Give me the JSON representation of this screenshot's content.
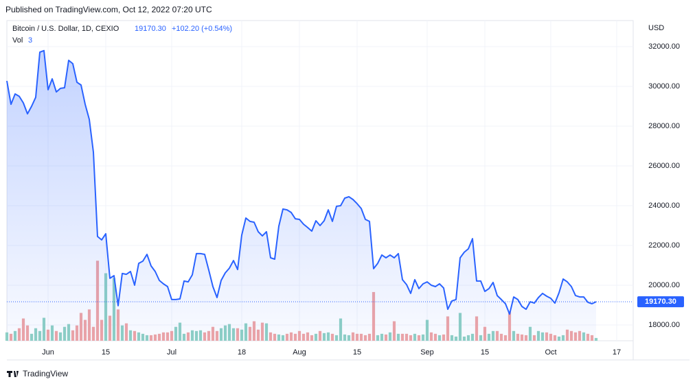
{
  "published": "Published on TradingView.com, Oct 12, 2022 07:20 UTC",
  "footer": "TradingView",
  "chart_data": {
    "type": "area",
    "title": "Bitcoin / U.S. Dollar, 1D, CEXIO",
    "last_price": "19170.30",
    "change": "+102.20 (+0.54%)",
    "volume_label": "Vol",
    "volume_setting": "3",
    "currency": "USD",
    "color": "#2962ff",
    "up_color": "#8fd1c4",
    "down_color": "#f0a5a5",
    "grid": true,
    "xlim": [
      0,
      152
    ],
    "xticks": [
      {
        "value": 10,
        "label": "Jun"
      },
      {
        "value": 24,
        "label": "15"
      },
      {
        "value": 40,
        "label": "Jul"
      },
      {
        "value": 57,
        "label": "18"
      },
      {
        "value": 71,
        "label": "Aug"
      },
      {
        "value": 85,
        "label": "15"
      },
      {
        "value": 102,
        "label": "Sep"
      },
      {
        "value": 116,
        "label": "15"
      },
      {
        "value": 132,
        "label": "Oct"
      },
      {
        "value": 148,
        "label": "17"
      }
    ],
    "ylim": [
      17207,
      33310
    ],
    "yticks": [
      {
        "value": 18000,
        "label": "18000.00"
      },
      {
        "value": 20000,
        "label": "20000.00"
      },
      {
        "value": 22000,
        "label": "22000.00"
      },
      {
        "value": 24000,
        "label": "24000.00"
      },
      {
        "value": 26000,
        "label": "26000.00"
      },
      {
        "value": 28000,
        "label": "28000.00"
      },
      {
        "value": 30000,
        "label": "30000.00"
      },
      {
        "value": 32000,
        "label": "32000.00"
      }
    ],
    "values": [
      30276,
      29100,
      29620,
      29500,
      29170,
      28620,
      29000,
      29450,
      31720,
      31800,
      29830,
      30380,
      29720,
      29900,
      29930,
      31310,
      31140,
      30210,
      30070,
      29100,
      28340,
      26690,
      22450,
      22280,
      22590,
      20350,
      20480,
      18970,
      20590,
      20550,
      20690,
      20000,
      21100,
      21210,
      21550,
      20970,
      20690,
      20240,
      20070,
      19930,
      19280,
      19280,
      19310,
      20210,
      20170,
      20520,
      21590,
      21590,
      21550,
      20760,
      19930,
      19380,
      20240,
      20620,
      20860,
      21240,
      20790,
      22520,
      23380,
      23210,
      23170,
      22690,
      22480,
      22690,
      21380,
      21310,
      22970,
      23830,
      23790,
      23660,
      23340,
      23310,
      23070,
      22900,
      22720,
      23240,
      23000,
      23240,
      23790,
      23210,
      23970,
      24000,
      24380,
      24450,
      24310,
      24100,
      23860,
      23310,
      23210,
      20830,
      21100,
      21520,
      21380,
      21520,
      21380,
      21590,
      20280,
      20030,
      19590,
      20280,
      19830,
      20070,
      20170,
      20000,
      19930,
      20070,
      19860,
      18790,
      19210,
      19280,
      21380,
      21660,
      21830,
      22340,
      20210,
      20210,
      19690,
      19830,
      20140,
      19480,
      19280,
      19070,
      18550,
      19410,
      19280,
      18930,
      18790,
      19170,
      19100,
      19380,
      19590,
      19450,
      19340,
      19100,
      19620,
      20310,
      20170,
      19930,
      19480,
      19410,
      19410,
      19140,
      19070,
      19170.3
    ],
    "volumes": [
      12,
      10,
      14,
      18,
      32,
      22,
      10,
      18,
      14,
      33,
      16,
      22,
      14,
      12,
      20,
      24,
      15,
      22,
      40,
      30,
      45,
      20,
      115,
      30,
      97,
      36,
      90,
      45,
      22,
      25,
      15,
      14,
      12,
      10,
      8,
      8,
      9,
      10,
      12,
      12,
      14,
      20,
      26,
      10,
      12,
      15,
      14,
      15,
      12,
      14,
      20,
      14,
      18,
      22,
      24,
      18,
      18,
      16,
      25,
      20,
      28,
      16,
      26,
      25,
      12,
      10,
      9,
      8,
      10,
      12,
      10,
      14,
      10,
      12,
      8,
      10,
      14,
      11,
      12,
      10,
      8,
      32,
      9,
      8,
      12,
      10,
      10,
      8,
      10,
      70,
      8,
      10,
      9,
      12,
      28,
      10,
      10,
      10,
      8,
      10,
      8,
      9,
      30,
      12,
      10,
      8,
      9,
      35,
      8,
      6,
      40,
      6,
      8,
      10,
      35,
      8,
      20,
      10,
      14,
      14,
      10,
      8,
      42,
      14,
      10,
      9,
      8,
      20,
      8,
      14,
      12,
      12,
      10,
      8,
      6,
      8,
      16,
      14,
      12,
      14,
      12,
      10,
      8,
      4
    ]
  }
}
